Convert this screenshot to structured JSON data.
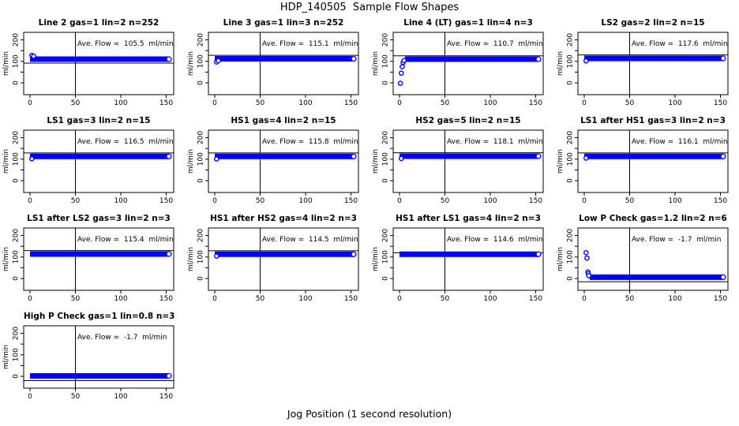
{
  "page": {
    "title": "HDP_140505  Sample Flow Shapes",
    "x_axis_label": "Jog Position (1 second resolution)"
  },
  "colors": {
    "marker_blue": "#0000FF",
    "axis_black": "#000000",
    "background": "#FFFFFF"
  },
  "chart_data": {
    "type": "scatter",
    "title": "HDP_140505  Sample Flow Shapes",
    "xlabel": "Jog Position (1 second resolution)",
    "ylabel": "ml/min",
    "xlim": [
      -6,
      158
    ],
    "ylim": [
      -55,
      235
    ],
    "x_ticks": [
      0,
      50,
      100,
      150
    ],
    "y_ticks": [
      0,
      50,
      100,
      150,
      200
    ],
    "y_tick_labeled": [
      0,
      100,
      200
    ],
    "grid": false,
    "legend": "none",
    "marker": "open-circle",
    "marker_color": "#0000FF",
    "vline_x": 50,
    "panels": [
      {
        "title": "Line 2 gas=1 lin=2 n=252",
        "ave_flow": 105.5,
        "annotation": "Ave. Flow =  105.5  ml/min",
        "plateau": 110,
        "band_x": [
          0,
          153
        ],
        "head_points": [
          [
            2,
            128
          ],
          [
            4,
            124
          ]
        ],
        "ref_line_y": 92
      },
      {
        "title": "Line 3 gas=1 lin=3 n=252",
        "ave_flow": 115.1,
        "annotation": "Ave. Flow =  115.1  ml/min",
        "plateau": 112,
        "band_x": [
          0,
          153
        ],
        "head_points": [
          [
            2,
            97
          ],
          [
            4,
            103
          ]
        ],
        "ref_line_y": 128
      },
      {
        "title": "Line 4 (LT) gas=1 lin=4 n=3",
        "ave_flow": 110.7,
        "annotation": "Ave. Flow =  110.7  ml/min",
        "plateau": 110,
        "band_x": [
          6,
          153
        ],
        "head_points": [
          [
            1,
            -2
          ],
          [
            2,
            45
          ],
          [
            3,
            75
          ],
          [
            4,
            95
          ],
          [
            5,
            104
          ]
        ],
        "ref_line_y": 126
      },
      {
        "title": "LS2 gas=2 lin=2 n=15",
        "ave_flow": 117.6,
        "annotation": "Ave. Flow =  117.6  ml/min",
        "plateau": 114,
        "band_x": [
          0,
          153
        ],
        "head_points": [
          [
            2,
            102
          ]
        ],
        "ref_line_y": 130
      },
      {
        "title": "LS1 gas=3 lin=2 n=15",
        "ave_flow": 116.5,
        "annotation": "Ave. Flow =  116.5  ml/min",
        "plateau": 113,
        "band_x": [
          0,
          153
        ],
        "head_points": [
          [
            2,
            102
          ]
        ],
        "ref_line_y": 129
      },
      {
        "title": "HS1 gas=4 lin=2 n=15",
        "ave_flow": 115.8,
        "annotation": "Ave. Flow =  115.8  ml/min",
        "plateau": 113,
        "band_x": [
          0,
          153
        ],
        "head_points": [
          [
            2,
            101
          ]
        ],
        "ref_line_y": 129
      },
      {
        "title": "HS2 gas=5 lin=2 n=15",
        "ave_flow": 118.1,
        "annotation": "Ave. Flow =  118.1  ml/min",
        "plateau": 114,
        "band_x": [
          0,
          153
        ],
        "head_points": [
          [
            2,
            103
          ]
        ],
        "ref_line_y": 130
      },
      {
        "title": "LS1 after HS1 gas=3 lin=2 n=3",
        "ave_flow": 116.1,
        "annotation": "Ave. Flow =  116.1  ml/min",
        "plateau": 113,
        "band_x": [
          0,
          153
        ],
        "head_points": [
          [
            2,
            105
          ]
        ],
        "ref_line_y": 129
      },
      {
        "title": "LS1 after LS2 gas=3 lin=2 n=3",
        "ave_flow": 115.4,
        "annotation": "Ave. Flow =  115.4  ml/min",
        "plateau": 114,
        "band_x": [
          0,
          153
        ],
        "head_points": [],
        "ref_line_y": 130
      },
      {
        "title": "HS1 after HS2 gas=4 lin=2 n=3",
        "ave_flow": 114.5,
        "annotation": "Ave. Flow =  114.5  ml/min",
        "plateau": 113,
        "band_x": [
          0,
          153
        ],
        "head_points": [
          [
            2,
            104
          ]
        ],
        "ref_line_y": 129
      },
      {
        "title": "HS1 after LS1 gas=4 lin=2 n=3",
        "ave_flow": 114.6,
        "annotation": "Ave. Flow =  114.6  ml/min",
        "plateau": 113,
        "band_x": [
          0,
          153
        ],
        "head_points": [],
        "ref_line_y": 120
      },
      {
        "title": "Low P Check gas=1.2 lin=2 n=6",
        "ave_flow": -1.7,
        "annotation": "Ave. Flow =  -1.7  ml/min",
        "plateau": 6,
        "band_x": [
          6,
          153
        ],
        "head_points": [
          [
            2,
            120
          ],
          [
            3,
            95
          ],
          [
            4,
            30
          ],
          [
            4.5,
            22
          ],
          [
            5,
            13
          ]
        ],
        "ref_line_y": -15
      },
      {
        "title": "High P Check gas=1 lin=0.8 n=3",
        "ave_flow": -1.7,
        "annotation": "Ave. Flow =  -1.7  ml/min",
        "plateau": 2,
        "band_x": [
          0,
          153
        ],
        "head_points": [],
        "ref_line_y": -20
      }
    ]
  }
}
